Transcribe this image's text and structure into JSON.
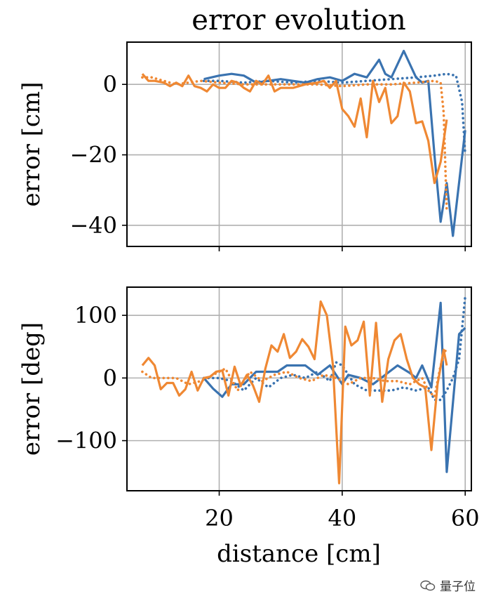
{
  "figure": {
    "title": "error evolution",
    "xlabel": "distance [cm]"
  },
  "watermark": "量子位",
  "chart_data": [
    {
      "type": "line",
      "ylabel": "error [cm]",
      "xlim": [
        5,
        61
      ],
      "ylim": [
        -46,
        12
      ],
      "xticks": [
        20,
        40,
        60
      ],
      "xtick_labels_visible": false,
      "yticks": [
        0,
        -20,
        -40
      ],
      "ytick_labels": [
        "0",
        "−20",
        "−40"
      ],
      "grid": true,
      "series": [
        {
          "color": "#3a73b0",
          "style": "solid",
          "x": [
            17.5,
            20,
            22,
            24,
            26,
            28,
            30,
            32,
            34,
            36,
            38,
            40,
            42,
            44,
            46,
            47,
            48,
            50,
            52,
            53,
            54,
            55,
            56,
            57,
            58,
            60
          ],
          "y": [
            1.5,
            2.5,
            3,
            2.5,
            0.5,
            1,
            1.5,
            1,
            0.5,
            1.5,
            2,
            1,
            3,
            2,
            7,
            3,
            2,
            9.5,
            2,
            0.5,
            1,
            -20,
            -39,
            -28,
            -43,
            -13
          ]
        },
        {
          "color": "#3a73b0",
          "style": "dotted",
          "x": [
            17.5,
            20,
            24,
            28,
            32,
            36,
            40,
            44,
            48,
            52,
            55,
            57,
            58.5,
            59.5,
            60
          ],
          "y": [
            1,
            1,
            0.5,
            1,
            0.5,
            1,
            0.5,
            1,
            1.5,
            2,
            2.5,
            3,
            2.5,
            -5,
            -20
          ]
        },
        {
          "color": "#ef8833",
          "style": "solid",
          "x": [
            7.5,
            8.5,
            9.5,
            11,
            12,
            13,
            14,
            15,
            16,
            17,
            18,
            19,
            20,
            21,
            22,
            23,
            24,
            25,
            26,
            27,
            28,
            29,
            30,
            31,
            32,
            34,
            36,
            37,
            38,
            39,
            40,
            41,
            42,
            43,
            44,
            45,
            46,
            47,
            48,
            49,
            50,
            51,
            52,
            53,
            54,
            55,
            56,
            57
          ],
          "y": [
            3,
            1,
            1,
            0.5,
            -0.5,
            0.5,
            -0.5,
            2.5,
            -0.5,
            -1,
            -2,
            0,
            -1,
            -1,
            1,
            0.5,
            -1,
            -2,
            1,
            0,
            2.5,
            -2,
            -1,
            -1,
            -1,
            0,
            0.5,
            1,
            -1,
            1,
            -7,
            -9,
            -12,
            -4,
            -15,
            1,
            -5,
            -1,
            -11,
            -9,
            0.5,
            -2,
            -11,
            -10.5,
            -16,
            -28,
            -22,
            -10
          ]
        },
        {
          "color": "#ef8833",
          "style": "dotted",
          "x": [
            7.5,
            9,
            11,
            13,
            15,
            17,
            20,
            24,
            28,
            32,
            36,
            40,
            44,
            48,
            52,
            55,
            56,
            56.5,
            57
          ],
          "y": [
            2,
            2,
            1,
            0,
            0.5,
            1,
            0.5,
            0,
            0,
            0,
            0,
            -0.5,
            0,
            0,
            0.5,
            1,
            0.5,
            -8,
            -36
          ]
        }
      ]
    },
    {
      "type": "line",
      "ylabel": "error [deg]",
      "xlim": [
        5,
        61
      ],
      "ylim": [
        -180,
        145
      ],
      "xticks": [
        20,
        40,
        60
      ],
      "xtick_labels": [
        "20",
        "40",
        "60"
      ],
      "yticks": [
        100,
        0,
        -100
      ],
      "ytick_labels": [
        "100",
        "0",
        "−100"
      ],
      "grid": true,
      "series": [
        {
          "color": "#3a73b0",
          "style": "solid",
          "x": [
            17.5,
            19,
            20.5,
            22,
            24,
            26,
            28,
            29.5,
            31,
            33,
            34,
            36,
            38,
            40,
            41,
            43,
            45,
            47,
            49,
            51,
            52,
            53,
            54.5,
            56,
            57,
            59,
            60
          ],
          "y": [
            0,
            -17,
            -30,
            -10,
            -10,
            10,
            10,
            10,
            20,
            20,
            20,
            5,
            20,
            -10,
            5,
            0,
            -10,
            5,
            20,
            8,
            0,
            20,
            -15,
            120,
            -150,
            70,
            80
          ]
        },
        {
          "color": "#3a73b0",
          "style": "dotted",
          "x": [
            17.5,
            20,
            22,
            24,
            26,
            28,
            30,
            32,
            34,
            36,
            38,
            39,
            40,
            42,
            44,
            46,
            48,
            50,
            52,
            54,
            55,
            56,
            57,
            58,
            59,
            60
          ],
          "y": [
            0,
            0,
            -5,
            -20,
            0,
            -15,
            0,
            5,
            0,
            10,
            -5,
            25,
            20,
            -10,
            -20,
            -20,
            -20,
            -15,
            -20,
            -15,
            -35,
            -35,
            -20,
            0,
            30,
            130
          ]
        },
        {
          "color": "#ef8833",
          "style": "solid",
          "x": [
            7.5,
            8.5,
            9.5,
            10.5,
            11.5,
            12.5,
            13.5,
            14.5,
            15.5,
            16.5,
            17.5,
            18.5,
            19.5,
            20.5,
            21.5,
            22.5,
            23.5,
            24.5,
            25.5,
            26.5,
            27.5,
            28.5,
            29.5,
            30.5,
            31.5,
            32.5,
            33.5,
            34.5,
            35.5,
            36.5,
            37.5,
            38.5,
            39.5,
            40.5,
            41.5,
            42.5,
            43.5,
            44.5,
            45.5,
            46.5,
            47.5,
            48.5,
            49.5,
            50.5,
            51.5,
            52.5,
            53.5,
            54.5,
            55.5,
            56.5,
            57
          ],
          "y": [
            20,
            32,
            20,
            -18,
            -8,
            -8,
            -28,
            -18,
            10,
            -20,
            0,
            2,
            10,
            12,
            -28,
            18,
            -12,
            5,
            -12,
            -38,
            15,
            52,
            42,
            70,
            32,
            42,
            62,
            50,
            30,
            122,
            100,
            20,
            -168,
            82,
            52,
            60,
            90,
            -28,
            88,
            -38,
            30,
            60,
            70,
            30,
            0,
            -10,
            -15,
            -115,
            -10,
            45,
            20
          ]
        },
        {
          "color": "#ef8833",
          "style": "dotted",
          "x": [
            7.5,
            9,
            11,
            13,
            15,
            17,
            19,
            21,
            23,
            25,
            27,
            29,
            31,
            33,
            35,
            37,
            39,
            41,
            43,
            45,
            47,
            49,
            51,
            53,
            54,
            55,
            56,
            57
          ],
          "y": [
            10,
            0,
            0,
            0,
            -10,
            -5,
            5,
            15,
            -20,
            10,
            -5,
            5,
            10,
            0,
            -5,
            5,
            0,
            -10,
            0,
            0,
            -5,
            -5,
            -10,
            0,
            -20,
            -30,
            20,
            50
          ]
        }
      ]
    }
  ]
}
